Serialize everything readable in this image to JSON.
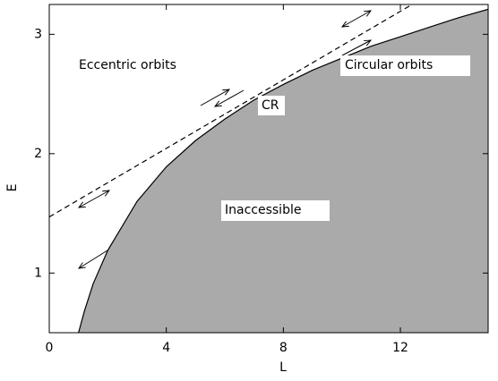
{
  "chart_data": {
    "type": "line",
    "xlabel": "L",
    "ylabel": "E",
    "xlim": [
      0,
      15
    ],
    "ylim": [
      0.5,
      3.25
    ],
    "xticks": [
      0,
      4,
      8,
      12
    ],
    "yticks": [
      1,
      2,
      3
    ],
    "annotations": [
      "Eccentric orbits",
      "Circular orbits",
      "CR",
      "Inaccessible"
    ],
    "series": [
      {
        "x": [
          1,
          1.2,
          1.5,
          2,
          3,
          4,
          5,
          6,
          7,
          8,
          9,
          10,
          11,
          12,
          13,
          14,
          15
        ],
        "values": [
          0.5,
          0.68,
          0.91,
          1.19,
          1.6,
          1.89,
          2.11,
          2.29,
          2.45,
          2.58,
          2.7,
          2.8,
          2.9,
          2.98,
          3.06,
          3.14,
          3.21
        ],
        "color": "#000000",
        "fill": "#aaaaaa"
      },
      {
        "x": [
          0,
          12.4
        ],
        "values": [
          1.47,
          3.25
        ],
        "color": "#000000",
        "dashed": true
      }
    ]
  }
}
